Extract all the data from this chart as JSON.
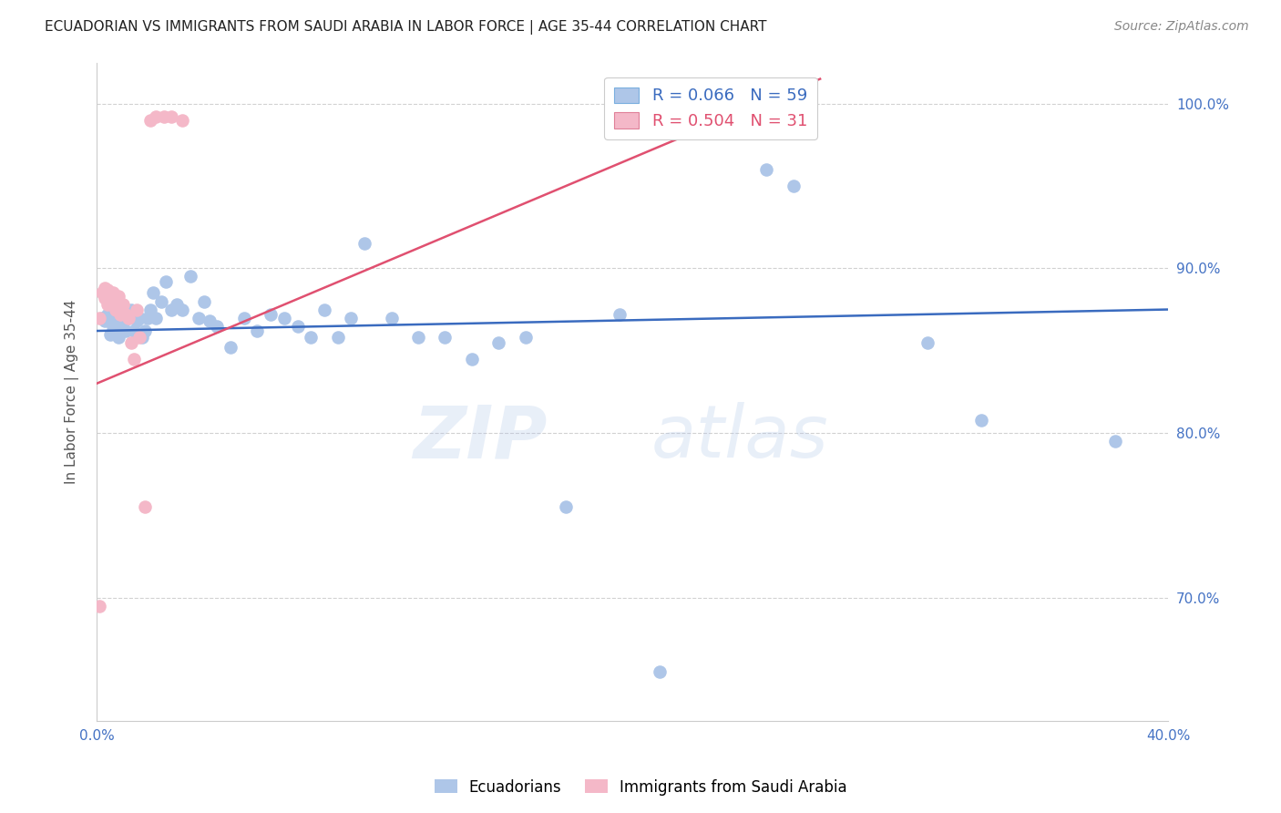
{
  "title": "ECUADORIAN VS IMMIGRANTS FROM SAUDI ARABIA IN LABOR FORCE | AGE 35-44 CORRELATION CHART",
  "source": "Source: ZipAtlas.com",
  "ylabel": "In Labor Force | Age 35-44",
  "xlim": [
    0.0,
    0.4
  ],
  "ylim": [
    0.625,
    1.025
  ],
  "xticks": [
    0.0,
    0.05,
    0.1,
    0.15,
    0.2,
    0.25,
    0.3,
    0.35,
    0.4
  ],
  "xtick_labels": [
    "0.0%",
    "",
    "",
    "",
    "",
    "",
    "",
    "",
    "40.0%"
  ],
  "yticks": [
    0.7,
    0.8,
    0.9,
    1.0
  ],
  "ytick_labels": [
    "70.0%",
    "80.0%",
    "90.0%",
    "100.0%"
  ],
  "blue_R": 0.066,
  "blue_N": 59,
  "pink_R": 0.504,
  "pink_N": 31,
  "blue_color": "#aec6e8",
  "pink_color": "#f4b8c8",
  "blue_line_color": "#3a6bbf",
  "pink_line_color": "#e05070",
  "blue_scatter_x": [
    0.002,
    0.003,
    0.004,
    0.005,
    0.005,
    0.006,
    0.007,
    0.007,
    0.008,
    0.009,
    0.01,
    0.01,
    0.011,
    0.012,
    0.013,
    0.014,
    0.015,
    0.016,
    0.017,
    0.018,
    0.019,
    0.02,
    0.021,
    0.022,
    0.024,
    0.026,
    0.028,
    0.03,
    0.032,
    0.035,
    0.038,
    0.04,
    0.042,
    0.045,
    0.05,
    0.055,
    0.06,
    0.065,
    0.07,
    0.075,
    0.08,
    0.085,
    0.09,
    0.095,
    0.1,
    0.11,
    0.12,
    0.13,
    0.14,
    0.15,
    0.16,
    0.175,
    0.195,
    0.21,
    0.25,
    0.26,
    0.31,
    0.33,
    0.38
  ],
  "blue_scatter_y": [
    0.87,
    0.868,
    0.872,
    0.86,
    0.875,
    0.865,
    0.87,
    0.878,
    0.858,
    0.862,
    0.868,
    0.872,
    0.862,
    0.87,
    0.875,
    0.862,
    0.868,
    0.87,
    0.858,
    0.862,
    0.87,
    0.875,
    0.885,
    0.87,
    0.88,
    0.892,
    0.875,
    0.878,
    0.875,
    0.895,
    0.87,
    0.88,
    0.868,
    0.865,
    0.852,
    0.87,
    0.862,
    0.872,
    0.87,
    0.865,
    0.858,
    0.875,
    0.858,
    0.87,
    0.915,
    0.87,
    0.858,
    0.858,
    0.845,
    0.855,
    0.858,
    0.755,
    0.872,
    0.655,
    0.96,
    0.95,
    0.855,
    0.808,
    0.795
  ],
  "pink_scatter_x": [
    0.001,
    0.002,
    0.003,
    0.003,
    0.004,
    0.004,
    0.004,
    0.005,
    0.005,
    0.006,
    0.006,
    0.007,
    0.007,
    0.008,
    0.008,
    0.009,
    0.009,
    0.01,
    0.011,
    0.012,
    0.013,
    0.014,
    0.015,
    0.016,
    0.018,
    0.02,
    0.022,
    0.025,
    0.028,
    0.032,
    0.001
  ],
  "pink_scatter_y": [
    0.87,
    0.885,
    0.882,
    0.888,
    0.878,
    0.883,
    0.887,
    0.88,
    0.885,
    0.88,
    0.885,
    0.875,
    0.878,
    0.878,
    0.883,
    0.872,
    0.878,
    0.878,
    0.872,
    0.87,
    0.855,
    0.845,
    0.875,
    0.858,
    0.755,
    0.99,
    0.992,
    0.992,
    0.992,
    0.99,
    0.695
  ],
  "blue_trendline_x": [
    0.0,
    0.4
  ],
  "blue_trendline_y": [
    0.862,
    0.875
  ],
  "pink_trendline_x": [
    0.0,
    0.27
  ],
  "pink_trendline_y": [
    0.83,
    1.015
  ]
}
